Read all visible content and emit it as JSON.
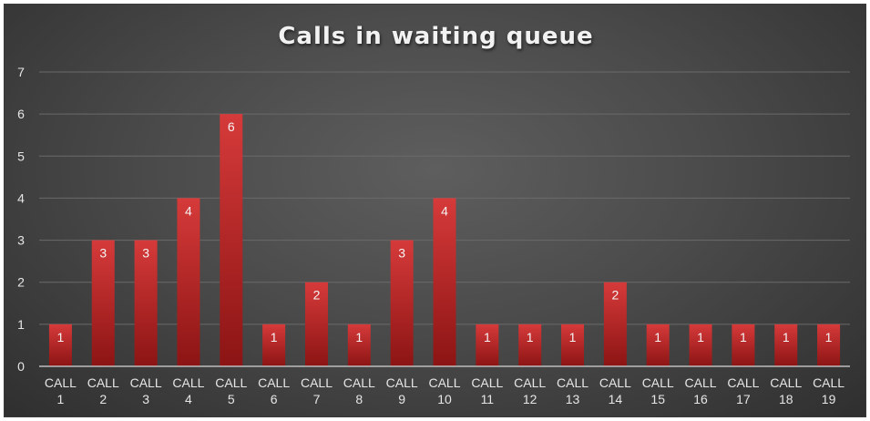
{
  "chart_data": {
    "type": "bar",
    "title": "Calls in waiting queue",
    "categories": [
      "CALL 1",
      "CALL 2",
      "CALL 3",
      "CALL 4",
      "CALL 5",
      "CALL 6",
      "CALL 7",
      "CALL 8",
      "CALL 9",
      "CALL 10",
      "CALL 11",
      "CALL 12",
      "CALL 13",
      "CALL 14",
      "CALL 15",
      "CALL 16",
      "CALL 17",
      "CALL 18",
      "CALL 19"
    ],
    "values": [
      1,
      3,
      3,
      4,
      6,
      1,
      2,
      1,
      3,
      4,
      1,
      1,
      1,
      2,
      1,
      1,
      1,
      1,
      1
    ],
    "xlabel": "",
    "ylabel": "",
    "ylim": [
      0,
      7
    ],
    "yticks": [
      0,
      1,
      2,
      3,
      4,
      5,
      6,
      7
    ],
    "grid": true,
    "data_labels": true,
    "legend": "none",
    "colors": {
      "bar_top": "#d63a3a",
      "bar_bottom": "#8c1414",
      "background": "#4b4b4b",
      "text": "#e6e6e6",
      "gridline": "#6a6a6a"
    }
  }
}
